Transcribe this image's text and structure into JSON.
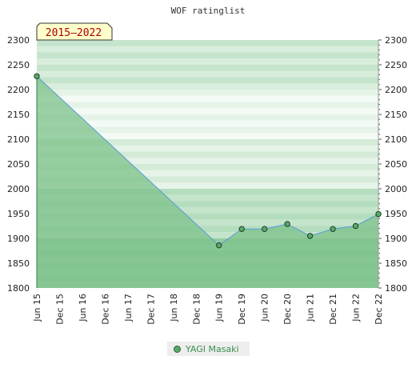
{
  "chart_data": {
    "type": "area",
    "title": "WOF ratinglist",
    "badge": "2015–2022",
    "xlabel": "",
    "ylabel": "",
    "ylim": [
      1800,
      2300
    ],
    "yticks": [
      1800,
      1850,
      1900,
      1950,
      2000,
      2050,
      2100,
      2150,
      2200,
      2250,
      2300
    ],
    "categories": [
      "Jun 15",
      "Dec 15",
      "Jun 16",
      "Dec 16",
      "Jun 17",
      "Dec 17",
      "Jun 18",
      "Dec 18",
      "Jun 19",
      "Dec 19",
      "Jun 20",
      "Dec 20",
      "Jun 21",
      "Dec 21",
      "Jun 22",
      "Dec 22"
    ],
    "series": [
      {
        "name": "YAGI Masaki",
        "points": [
          {
            "x": "Jun 15",
            "y": 2227
          },
          {
            "x": "Jun 19",
            "y": 1886
          },
          {
            "x": "Dec 19",
            "y": 1919
          },
          {
            "x": "Jun 20",
            "y": 1919
          },
          {
            "x": "Dec 20",
            "y": 1929
          },
          {
            "x": "Jun 21",
            "y": 1905
          },
          {
            "x": "Dec 21",
            "y": 1919
          },
          {
            "x": "Jun 22",
            "y": 1925
          },
          {
            "x": "Dec 22",
            "y": 1949
          }
        ]
      }
    ],
    "legend_position": "bottom-center",
    "colors": {
      "fill": "#7cc28a",
      "line": "#5b9bd5",
      "marker": "#5aa86a",
      "badge_bg": "#ffffcc",
      "badge_text": "#aa0000"
    }
  }
}
